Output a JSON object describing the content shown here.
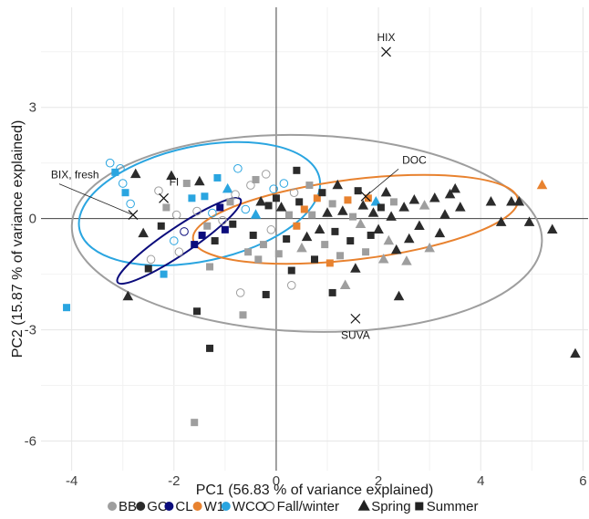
{
  "chart_data": {
    "type": "scatter",
    "xlabel": "PC1 (56.83 % of variance explained)",
    "ylabel": "PC2 (15.87 % of variance explained)",
    "xlim": [
      -4.6,
      6.1
    ],
    "ylim": [
      -6.8,
      5.7
    ],
    "x_ticks": [
      -4,
      -2,
      0,
      2,
      4,
      6
    ],
    "y_ticks": [
      -6,
      -3,
      0,
      3
    ],
    "grid": true,
    "colors": {
      "BB": "#9e9e9e",
      "GC": "#2b2b2b",
      "CL": "#0b0c7c",
      "W1": "#e8822f",
      "WCO": "#2aa5e0"
    },
    "legend": {
      "placement": "bottom",
      "sites": [
        {
          "label": "BB",
          "color": "#9e9e9e"
        },
        {
          "label": "GC",
          "color": "#2b2b2b"
        },
        {
          "label": "CL",
          "color": "#0b0c7c"
        },
        {
          "label": "W1",
          "color": "#e8822f"
        },
        {
          "label": "WCO",
          "color": "#2aa5e0"
        }
      ],
      "seasons": [
        {
          "label": "Fall/winter",
          "shape": "circle-open"
        },
        {
          "label": "Spring",
          "shape": "triangle"
        },
        {
          "label": "Summer",
          "shape": "square"
        }
      ]
    },
    "loadings": [
      {
        "label": "HIX",
        "x": 2.15,
        "y": 4.5
      },
      {
        "label": "DOC",
        "x": 1.75,
        "y": 0.6
      },
      {
        "label": "SUVA",
        "x": 1.55,
        "y": -2.7
      },
      {
        "label": "FI",
        "x": -2.2,
        "y": 0.55
      },
      {
        "label": "BIX, fresh",
        "x": -2.8,
        "y": 0.1
      }
    ],
    "ellipses": [
      {
        "site": "BB",
        "cx": 0.6,
        "cy": -0.4,
        "rx": 4.6,
        "ry": 2.65,
        "angle_deg": -2
      },
      {
        "site": "WCO",
        "cx": -1.5,
        "cy": 0.4,
        "rx": 2.4,
        "ry": 1.55,
        "angle_deg": 12
      },
      {
        "site": "W1",
        "cx": 1.55,
        "cy": -0.02,
        "rx": 3.2,
        "ry": 1.08,
        "angle_deg": 7
      },
      {
        "site": "CL",
        "cx": -1.9,
        "cy": -0.6,
        "rx": 1.45,
        "ry": 0.36,
        "angle_deg": 34
      }
    ],
    "points": [
      {
        "x": -4.1,
        "y": -2.4,
        "site": "WCO",
        "season": "Summer"
      },
      {
        "x": -3.25,
        "y": 1.5,
        "site": "WCO",
        "season": "Fall/winter"
      },
      {
        "x": -3.05,
        "y": 1.35,
        "site": "WCO",
        "season": "Fall/winter"
      },
      {
        "x": -3.15,
        "y": 1.25,
        "site": "WCO",
        "season": "Summer"
      },
      {
        "x": -3.0,
        "y": 0.95,
        "site": "WCO",
        "season": "Fall/winter"
      },
      {
        "x": -2.95,
        "y": 0.7,
        "site": "WCO",
        "season": "Summer"
      },
      {
        "x": -2.85,
        "y": 0.4,
        "site": "WCO",
        "season": "Fall/winter"
      },
      {
        "x": -2.75,
        "y": 1.2,
        "site": "GC",
        "season": "Spring"
      },
      {
        "x": -2.6,
        "y": -0.4,
        "site": "GC",
        "season": "Spring"
      },
      {
        "x": -2.45,
        "y": -1.1,
        "site": "BB",
        "season": "Fall/winter"
      },
      {
        "x": -2.5,
        "y": -1.35,
        "site": "GC",
        "season": "Summer"
      },
      {
        "x": -2.3,
        "y": 0.75,
        "site": "BB",
        "season": "Fall/winter"
      },
      {
        "x": -2.25,
        "y": -0.2,
        "site": "GC",
        "season": "Summer"
      },
      {
        "x": -2.2,
        "y": -1.5,
        "site": "WCO",
        "season": "Summer"
      },
      {
        "x": -2.15,
        "y": 0.3,
        "site": "BB",
        "season": "Summer"
      },
      {
        "x": -2.05,
        "y": 1.15,
        "site": "GC",
        "season": "Spring"
      },
      {
        "x": -2.0,
        "y": -0.6,
        "site": "WCO",
        "season": "Fall/winter"
      },
      {
        "x": -1.95,
        "y": 0.1,
        "site": "BB",
        "season": "Fall/winter"
      },
      {
        "x": -1.9,
        "y": -0.9,
        "site": "BB",
        "season": "Fall/winter"
      },
      {
        "x": -1.8,
        "y": -0.35,
        "site": "CL",
        "season": "Fall/winter"
      },
      {
        "x": -1.75,
        "y": 0.95,
        "site": "BB",
        "season": "Summer"
      },
      {
        "x": -1.65,
        "y": 0.55,
        "site": "WCO",
        "season": "Summer"
      },
      {
        "x": -1.6,
        "y": -0.7,
        "site": "CL",
        "season": "Summer"
      },
      {
        "x": -1.55,
        "y": 0.2,
        "site": "BB",
        "season": "Fall/winter"
      },
      {
        "x": -1.55,
        "y": -2.5,
        "site": "GC",
        "season": "Summer"
      },
      {
        "x": -1.5,
        "y": 1.0,
        "site": "GC",
        "season": "Spring"
      },
      {
        "x": -1.45,
        "y": -0.45,
        "site": "CL",
        "season": "Summer"
      },
      {
        "x": -1.4,
        "y": 0.6,
        "site": "WCO",
        "season": "Summer"
      },
      {
        "x": -1.35,
        "y": -0.2,
        "site": "BB",
        "season": "Summer"
      },
      {
        "x": -1.3,
        "y": -1.3,
        "site": "BB",
        "season": "Summer"
      },
      {
        "x": -1.25,
        "y": 0.15,
        "site": "WCO",
        "season": "Fall/winter"
      },
      {
        "x": -1.2,
        "y": -0.6,
        "site": "GC",
        "season": "Summer"
      },
      {
        "x": -1.15,
        "y": 1.1,
        "site": "WCO",
        "season": "Summer"
      },
      {
        "x": -1.1,
        "y": 0.3,
        "site": "CL",
        "season": "Summer"
      },
      {
        "x": -1.05,
        "y": -0.05,
        "site": "BB",
        "season": "Fall/winter"
      },
      {
        "x": -1.0,
        "y": -0.3,
        "site": "CL",
        "season": "Summer"
      },
      {
        "x": -0.95,
        "y": 0.8,
        "site": "WCO",
        "season": "Spring"
      },
      {
        "x": -0.9,
        "y": 0.45,
        "site": "BB",
        "season": "Summer"
      },
      {
        "x": -0.85,
        "y": -0.15,
        "site": "GC",
        "season": "Summer"
      },
      {
        "x": -0.8,
        "y": 0.65,
        "site": "BB",
        "season": "Fall/winter"
      },
      {
        "x": -0.75,
        "y": 1.35,
        "site": "WCO",
        "season": "Fall/winter"
      },
      {
        "x": -0.7,
        "y": -2.0,
        "site": "BB",
        "season": "Fall/winter"
      },
      {
        "x": -0.65,
        "y": -2.6,
        "site": "BB",
        "season": "Summer"
      },
      {
        "x": -0.6,
        "y": 0.25,
        "site": "WCO",
        "season": "Fall/winter"
      },
      {
        "x": -0.55,
        "y": -0.9,
        "site": "BB",
        "season": "Summer"
      },
      {
        "x": -0.5,
        "y": 0.9,
        "site": "BB",
        "season": "Fall/winter"
      },
      {
        "x": -0.45,
        "y": -0.45,
        "site": "GC",
        "season": "Summer"
      },
      {
        "x": -0.4,
        "y": 0.1,
        "site": "WCO",
        "season": "Spring"
      },
      {
        "x": -0.35,
        "y": -1.1,
        "site": "BB",
        "season": "Summer"
      },
      {
        "x": -0.3,
        "y": 0.45,
        "site": "GC",
        "season": "Spring"
      },
      {
        "x": -0.25,
        "y": -0.7,
        "site": "BB",
        "season": "Summer"
      },
      {
        "x": -0.2,
        "y": 1.2,
        "site": "BB",
        "season": "Fall/winter"
      },
      {
        "x": -0.15,
        "y": 0.35,
        "site": "GC",
        "season": "Summer"
      },
      {
        "x": -0.1,
        "y": -0.3,
        "site": "BB",
        "season": "Fall/winter"
      },
      {
        "x": -0.05,
        "y": 0.8,
        "site": "WCO",
        "season": "Fall/winter"
      },
      {
        "x": 0.0,
        "y": 0.55,
        "site": "GC",
        "season": "Summer"
      },
      {
        "x": 0.05,
        "y": -0.95,
        "site": "BB",
        "season": "Summer"
      },
      {
        "x": 0.1,
        "y": 0.3,
        "site": "GC",
        "season": "Spring"
      },
      {
        "x": 0.15,
        "y": 0.95,
        "site": "WCO",
        "season": "Fall/winter"
      },
      {
        "x": 0.2,
        "y": -0.55,
        "site": "GC",
        "season": "Summer"
      },
      {
        "x": 0.25,
        "y": 0.1,
        "site": "BB",
        "season": "Summer"
      },
      {
        "x": 0.3,
        "y": -1.4,
        "site": "GC",
        "season": "Summer"
      },
      {
        "x": 0.35,
        "y": 0.7,
        "site": "BB",
        "season": "Fall/winter"
      },
      {
        "x": 0.4,
        "y": -0.2,
        "site": "W1",
        "season": "Summer"
      },
      {
        "x": 0.45,
        "y": 0.45,
        "site": "GC",
        "season": "Summer"
      },
      {
        "x": 0.5,
        "y": -0.8,
        "site": "BB",
        "season": "Spring"
      },
      {
        "x": 0.55,
        "y": 0.25,
        "site": "W1",
        "season": "Summer"
      },
      {
        "x": 0.6,
        "y": -0.5,
        "site": "GC",
        "season": "Spring"
      },
      {
        "x": 0.65,
        "y": 0.9,
        "site": "BB",
        "season": "Summer"
      },
      {
        "x": 0.7,
        "y": 0.1,
        "site": "BB",
        "season": "Summer"
      },
      {
        "x": 0.75,
        "y": -1.1,
        "site": "GC",
        "season": "Summer"
      },
      {
        "x": 0.8,
        "y": 0.55,
        "site": "W1",
        "season": "Summer"
      },
      {
        "x": 0.85,
        "y": -0.3,
        "site": "GC",
        "season": "Spring"
      },
      {
        "x": 0.9,
        "y": 0.7,
        "site": "GC",
        "season": "Summer"
      },
      {
        "x": 0.95,
        "y": -0.7,
        "site": "BB",
        "season": "Summer"
      },
      {
        "x": 1.0,
        "y": 0.15,
        "site": "GC",
        "season": "Spring"
      },
      {
        "x": 1.05,
        "y": -1.2,
        "site": "W1",
        "season": "Summer"
      },
      {
        "x": 1.1,
        "y": 0.4,
        "site": "BB",
        "season": "Summer"
      },
      {
        "x": 1.15,
        "y": -0.35,
        "site": "GC",
        "season": "Summer"
      },
      {
        "x": 1.2,
        "y": 0.9,
        "site": "GC",
        "season": "Spring"
      },
      {
        "x": 1.25,
        "y": -1.0,
        "site": "BB",
        "season": "Summer"
      },
      {
        "x": 1.3,
        "y": 0.2,
        "site": "GC",
        "season": "Spring"
      },
      {
        "x": 1.35,
        "y": -1.8,
        "site": "BB",
        "season": "Spring"
      },
      {
        "x": 1.4,
        "y": 0.5,
        "site": "W1",
        "season": "Summer"
      },
      {
        "x": 1.45,
        "y": -0.6,
        "site": "GC",
        "season": "Summer"
      },
      {
        "x": 1.5,
        "y": 0.05,
        "site": "BB",
        "season": "Summer"
      },
      {
        "x": 1.55,
        "y": -1.35,
        "site": "GC",
        "season": "Spring"
      },
      {
        "x": 1.6,
        "y": 0.75,
        "site": "GC",
        "season": "Summer"
      },
      {
        "x": 1.65,
        "y": -0.15,
        "site": "BB",
        "season": "Spring"
      },
      {
        "x": 1.7,
        "y": 0.35,
        "site": "GC",
        "season": "Spring"
      },
      {
        "x": 1.75,
        "y": -0.9,
        "site": "BB",
        "season": "Summer"
      },
      {
        "x": 1.8,
        "y": 0.55,
        "site": "W1",
        "season": "Summer"
      },
      {
        "x": 1.85,
        "y": -0.45,
        "site": "GC",
        "season": "Summer"
      },
      {
        "x": 1.9,
        "y": 0.15,
        "site": "GC",
        "season": "Spring"
      },
      {
        "x": 1.95,
        "y": 0.45,
        "site": "WCO",
        "season": "Spring"
      },
      {
        "x": 2.0,
        "y": -0.3,
        "site": "GC",
        "season": "Spring"
      },
      {
        "x": 2.05,
        "y": 0.3,
        "site": "GC",
        "season": "Summer"
      },
      {
        "x": 2.1,
        "y": -1.1,
        "site": "BB",
        "season": "Spring"
      },
      {
        "x": 2.15,
        "y": 0.7,
        "site": "GC",
        "season": "Spring"
      },
      {
        "x": 2.2,
        "y": -0.6,
        "site": "BB",
        "season": "Spring"
      },
      {
        "x": 2.25,
        "y": 0.05,
        "site": "GC",
        "season": "Spring"
      },
      {
        "x": 2.3,
        "y": 0.45,
        "site": "BB",
        "season": "Summer"
      },
      {
        "x": 2.35,
        "y": -0.85,
        "site": "GC",
        "season": "Spring"
      },
      {
        "x": 2.4,
        "y": -2.1,
        "site": "GC",
        "season": "Spring"
      },
      {
        "x": 2.5,
        "y": 0.3,
        "site": "GC",
        "season": "Spring"
      },
      {
        "x": 2.55,
        "y": -1.15,
        "site": "BB",
        "season": "Spring"
      },
      {
        "x": 2.6,
        "y": -0.55,
        "site": "GC",
        "season": "Spring"
      },
      {
        "x": 2.7,
        "y": 0.5,
        "site": "GC",
        "season": "Spring"
      },
      {
        "x": 2.8,
        "y": -0.2,
        "site": "GC",
        "season": "Spring"
      },
      {
        "x": 2.9,
        "y": 0.35,
        "site": "BB",
        "season": "Spring"
      },
      {
        "x": 3.0,
        "y": -0.8,
        "site": "BB",
        "season": "Spring"
      },
      {
        "x": 3.1,
        "y": 0.55,
        "site": "GC",
        "season": "Spring"
      },
      {
        "x": 3.2,
        "y": -0.4,
        "site": "GC",
        "season": "Spring"
      },
      {
        "x": 3.3,
        "y": 0.1,
        "site": "GC",
        "season": "Spring"
      },
      {
        "x": 3.4,
        "y": 0.65,
        "site": "GC",
        "season": "Spring"
      },
      {
        "x": 3.5,
        "y": 0.8,
        "site": "GC",
        "season": "Spring"
      },
      {
        "x": 3.6,
        "y": 0.3,
        "site": "GC",
        "season": "Spring"
      },
      {
        "x": 4.2,
        "y": 0.45,
        "site": "GC",
        "season": "Spring"
      },
      {
        "x": 4.4,
        "y": -0.1,
        "site": "GC",
        "season": "Spring"
      },
      {
        "x": 4.6,
        "y": 0.45,
        "site": "GC",
        "season": "Spring"
      },
      {
        "x": 4.75,
        "y": 0.45,
        "site": "GC",
        "season": "Spring"
      },
      {
        "x": 4.95,
        "y": -0.1,
        "site": "GC",
        "season": "Spring"
      },
      {
        "x": 5.2,
        "y": 0.9,
        "site": "W1",
        "season": "Spring"
      },
      {
        "x": 5.4,
        "y": -0.3,
        "site": "GC",
        "season": "Spring"
      },
      {
        "x": 5.85,
        "y": -3.65,
        "site": "GC",
        "season": "Spring"
      },
      {
        "x": -1.6,
        "y": -5.5,
        "site": "BB",
        "season": "Summer"
      },
      {
        "x": -1.3,
        "y": -3.5,
        "site": "GC",
        "season": "Summer"
      },
      {
        "x": -2.9,
        "y": -2.1,
        "site": "GC",
        "season": "Spring"
      },
      {
        "x": -0.2,
        "y": -2.05,
        "site": "GC",
        "season": "Summer"
      },
      {
        "x": 0.3,
        "y": -1.8,
        "site": "BB",
        "season": "Fall/winter"
      },
      {
        "x": 1.1,
        "y": -2.0,
        "site": "GC",
        "season": "Summer"
      },
      {
        "x": 0.4,
        "y": 1.3,
        "site": "GC",
        "season": "Summer"
      },
      {
        "x": -0.4,
        "y": 1.05,
        "site": "BB",
        "season": "Summer"
      }
    ]
  }
}
